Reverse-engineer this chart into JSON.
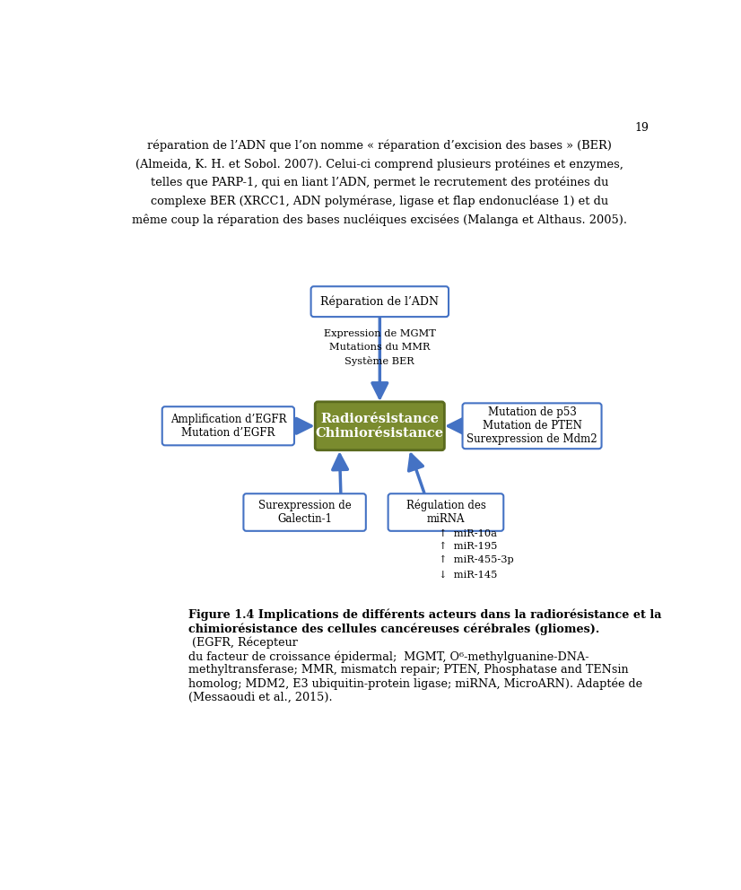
{
  "arrow_color": "#4472C4",
  "center_box_fill": "#7A8B2E",
  "center_box_edge": "#5A6A1E",
  "outline_box_color": "#4472C4",
  "outline_box_fill": "#FFFFFF",
  "page_number": "19",
  "top_box_label": "Réparation de l’ADN",
  "top_sub_text": "Expression de MGMT\nMutations du MMR\nSystème BER",
  "center_label": "Radiorésistance\nChimiorésistance",
  "left_box_label": "Amplification d’EGFR\nMutation d’EGFR",
  "right_box_label": "Mutation de p53\nMutation de PTEN\nSurexpression de Mdm2",
  "bottom_left_box_label": "Surexpression de\nGalectin-1",
  "bottom_right_box_label": "Régulation des\nmiRNA",
  "mirna_up": "↑  miR-10a\n↑  miR-195\n↑  miR-455-3p",
  "mirna_down": "↓  miR-145",
  "top_para_line1": "réparation de l’ADN que l’on nomme « réparation d’excision des bases » (BER)",
  "top_para_line2": "(Almeida, K. H. et Sobol. 2007). Celui-ci comprend plusieurs protéines et enzymes,",
  "top_para_line3": "telles que PARP-1, qui en liant l’ADN, permet le recrutement des protéines du",
  "top_para_line4": "complexe BER (XRCC1, ADN polymérase, ligase et flap endonucléase 1) et du",
  "top_para_line5": "même coup la réparation des bases nucléiques excisées (Malanga et Althaus. 2005).",
  "caption_bold_line1": "Figure 1.4 Implications de différents acteurs dans la radiorésistance et la",
  "caption_bold_line2": "chimiorésistance des cellules cancéreuses cérébrales (gliomes).",
  "caption_normal": " (EGFR, Récepteur\ndu facteur de croissance épidermal;  MGMT, O⁶-methylguanine-DNA-\nmethyltransferase; MMR, mismatch repair; PTEN, Phosphatase and TENsin\nhomolog; MDM2, E3 ubiquitin-protein ligase; miRNA, MicroARN). Adaptée de\n(Messaoudi et al., 2015)."
}
